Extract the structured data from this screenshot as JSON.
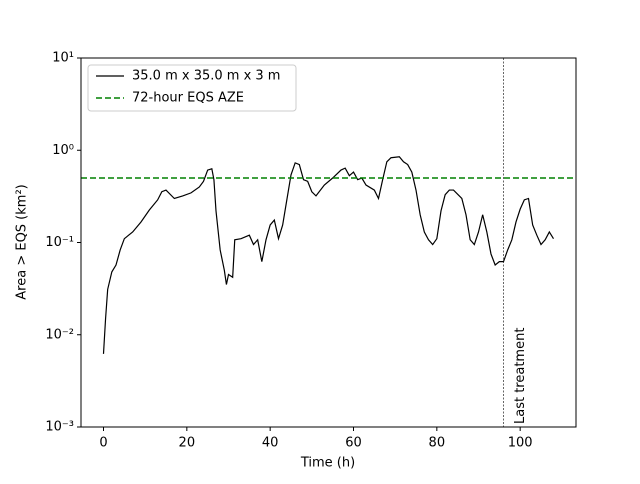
{
  "chart_data": {
    "type": "line",
    "xlabel": "Time (h)",
    "ylabel": "Area > EQS (km²)",
    "log_y": true,
    "legend": "upper left",
    "xlim": [
      -5.4,
      113.4
    ],
    "xticks": [
      0,
      20,
      40,
      60,
      80,
      100
    ],
    "ylim": [
      0.001,
      10
    ],
    "yticks": [
      {
        "value": 0.001,
        "label": "10⁻³"
      },
      {
        "value": 0.01,
        "label": "10⁻²"
      },
      {
        "value": 0.1,
        "label": "10⁻¹"
      },
      {
        "value": 1,
        "label": "10⁰"
      },
      {
        "value": 10,
        "label": "10¹"
      }
    ],
    "series": [
      {
        "name": "35.0 m x 35.0 m x 3 m",
        "color": "#000000",
        "x": [
          0,
          0.5,
          1,
          2,
          3,
          4,
          5,
          7,
          9,
          11,
          13,
          14,
          15,
          17,
          19,
          21,
          23,
          24,
          25,
          26,
          26.5,
          27,
          28,
          29,
          29.5,
          30,
          31,
          31.5,
          33,
          35,
          36,
          37,
          38,
          39,
          40,
          41,
          42,
          43,
          44,
          45,
          46,
          47,
          48,
          49,
          50,
          51,
          53,
          55,
          57,
          58,
          59,
          60,
          61,
          62,
          63,
          65,
          66,
          67,
          68,
          69,
          71,
          72,
          73,
          74,
          75,
          76,
          77,
          78,
          79,
          80,
          81,
          82,
          83,
          84,
          86,
          87,
          88,
          89,
          90,
          91,
          92,
          93,
          94,
          95,
          96,
          97,
          98,
          99,
          100,
          101,
          102,
          103,
          104,
          105,
          106,
          107,
          108
        ],
        "values": [
          0.0062,
          0.015,
          0.031,
          0.048,
          0.057,
          0.083,
          0.11,
          0.13,
          0.167,
          0.225,
          0.29,
          0.355,
          0.37,
          0.3,
          0.32,
          0.345,
          0.4,
          0.46,
          0.61,
          0.63,
          0.48,
          0.22,
          0.083,
          0.05,
          0.035,
          0.045,
          0.042,
          0.107,
          0.11,
          0.12,
          0.095,
          0.107,
          0.062,
          0.107,
          0.155,
          0.175,
          0.11,
          0.155,
          0.29,
          0.54,
          0.73,
          0.7,
          0.48,
          0.46,
          0.355,
          0.32,
          0.42,
          0.5,
          0.61,
          0.64,
          0.53,
          0.58,
          0.48,
          0.5,
          0.42,
          0.37,
          0.3,
          0.48,
          0.75,
          0.83,
          0.85,
          0.75,
          0.7,
          0.58,
          0.37,
          0.2,
          0.13,
          0.107,
          0.095,
          0.11,
          0.22,
          0.33,
          0.37,
          0.37,
          0.3,
          0.2,
          0.107,
          0.095,
          0.13,
          0.2,
          0.13,
          0.075,
          0.057,
          0.062,
          0.062,
          0.083,
          0.107,
          0.167,
          0.23,
          0.29,
          0.3,
          0.155,
          0.12,
          0.095,
          0.107,
          0.13,
          0.11
        ]
      },
      {
        "name": "72-hour EQS AZE",
        "color": "#008000",
        "hline": 0.5
      }
    ],
    "vline": {
      "x": 96,
      "label": "Last treatment"
    }
  }
}
